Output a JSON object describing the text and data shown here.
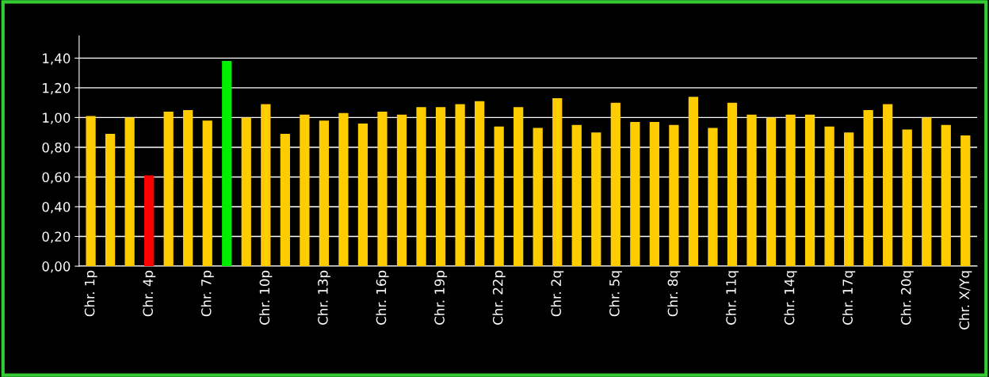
{
  "chart_data": {
    "type": "bar",
    "categories": [
      "Chr. 1p",
      null,
      null,
      "Chr. 4p",
      null,
      null,
      "Chr. 7p",
      null,
      null,
      "Chr. 10p",
      null,
      null,
      "Chr. 13p",
      null,
      null,
      "Chr. 16p",
      null,
      null,
      "Chr. 19p",
      null,
      null,
      "Chr. 22p",
      null,
      null,
      "Chr. 2q",
      null,
      null,
      "Chr. 5q",
      null,
      null,
      "Chr. 8q",
      null,
      null,
      "Chr. 11q",
      null,
      null,
      "Chr. 14q",
      null,
      null,
      "Chr. 17q",
      null,
      null,
      "Chr. 20q",
      null,
      null,
      "Chr. X/Yq"
    ],
    "values": [
      1.01,
      0.89,
      1.0,
      0.61,
      1.04,
      1.05,
      0.98,
      1.38,
      1.0,
      1.09,
      0.89,
      1.02,
      0.98,
      1.03,
      0.96,
      1.04,
      1.02,
      1.07,
      1.07,
      1.09,
      1.11,
      0.94,
      1.07,
      0.93,
      1.13,
      0.95,
      0.9,
      1.1,
      0.97,
      0.97,
      0.95,
      1.14,
      0.93,
      1.1,
      1.02,
      1.0,
      1.02,
      1.02,
      0.94,
      0.9,
      1.05,
      1.09,
      0.92,
      1.0,
      0.95,
      0.88
    ],
    "colors": [
      "#ffcc00",
      "#ffcc00",
      "#ffcc00",
      "#ff0000",
      "#ffcc00",
      "#ffcc00",
      "#ffcc00",
      "#00ee00",
      "#ffcc00",
      "#ffcc00",
      "#ffcc00",
      "#ffcc00",
      "#ffcc00",
      "#ffcc00",
      "#ffcc00",
      "#ffcc00",
      "#ffcc00",
      "#ffcc00",
      "#ffcc00",
      "#ffcc00",
      "#ffcc00",
      "#ffcc00",
      "#ffcc00",
      "#ffcc00",
      "#ffcc00",
      "#ffcc00",
      "#ffcc00",
      "#ffcc00",
      "#ffcc00",
      "#ffcc00",
      "#ffcc00",
      "#ffcc00",
      "#ffcc00",
      "#ffcc00",
      "#ffcc00",
      "#ffcc00",
      "#ffcc00",
      "#ffcc00",
      "#ffcc00",
      "#ffcc00",
      "#ffcc00",
      "#ffcc00",
      "#ffcc00",
      "#ffcc00",
      "#ffcc00",
      "#ffcc00"
    ],
    "ylim": [
      0,
      1.55
    ],
    "yticks": [
      {
        "value": 0,
        "label": "0,00"
      },
      {
        "value": 0.2,
        "label": "0,20"
      },
      {
        "value": 0.4,
        "label": "0,40"
      },
      {
        "value": 0.6,
        "label": "0,60"
      },
      {
        "value": 0.8,
        "label": "0,80"
      },
      {
        "value": 1.0,
        "label": "1,00"
      },
      {
        "value": 1.2,
        "label": "1,20"
      },
      {
        "value": 1.4,
        "label": "1,40"
      }
    ],
    "grid": "y"
  }
}
